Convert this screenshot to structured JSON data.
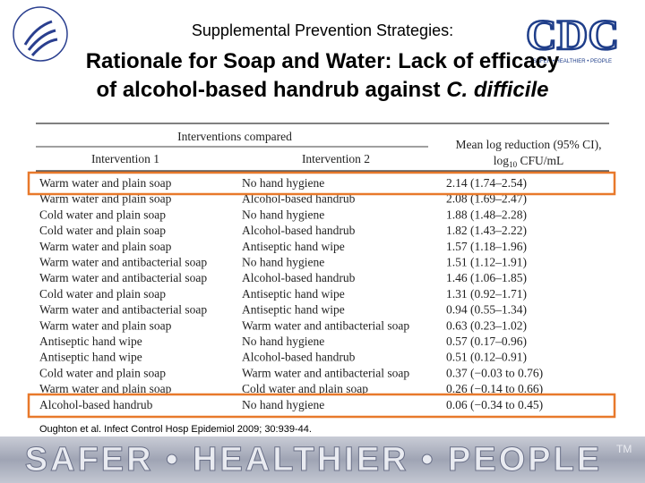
{
  "header": {
    "subtitle": "Supplemental Prevention Strategies:",
    "title_line1": "Rationale for Soap and Water: Lack of efficacy",
    "title_line2": "of alcohol-based handrub against ",
    "title_italic": "C. difficile",
    "logo": "CDC",
    "logo_tagline": "SAFER • HEALTHIER • PEOPLE"
  },
  "table": {
    "group_header": "Interventions compared",
    "col1": "Intervention 1",
    "col2": "Intervention 2",
    "col3_line1": "Mean log reduction (95% CI),",
    "col3_log": "log",
    "col3_sub": "10",
    "col3_unit": " CFU/mL",
    "rows": [
      [
        "Warm water and plain soap",
        "No hand hygiene",
        "2.14 (1.74–2.54)"
      ],
      [
        "Warm water and plain soap",
        "Alcohol-based handrub",
        "2.08 (1.69–2.47)"
      ],
      [
        "Cold water and plain soap",
        "No hand hygiene",
        "1.88 (1.48–2.28)"
      ],
      [
        "Cold water and plain soap",
        "Alcohol-based handrub",
        "1.82 (1.43–2.22)"
      ],
      [
        "Warm water and plain soap",
        "Antiseptic hand wipe",
        "1.57 (1.18–1.96)"
      ],
      [
        "Warm water and antibacterial soap",
        "No hand hygiene",
        "1.51 (1.12–1.91)"
      ],
      [
        "Warm water and antibacterial soap",
        "Alcohol-based handrub",
        "1.46 (1.06–1.85)"
      ],
      [
        "Cold water and plain soap",
        "Antiseptic hand wipe",
        "1.31 (0.92–1.71)"
      ],
      [
        "Warm water and antibacterial soap",
        "Antiseptic hand wipe",
        "0.94 (0.55–1.34)"
      ],
      [
        "Warm water and plain soap",
        "Warm water and antibacterial soap",
        "0.63 (0.23–1.02)"
      ],
      [
        "Antiseptic hand wipe",
        "No hand hygiene",
        "0.57 (0.17–0.96)"
      ],
      [
        "Antiseptic hand wipe",
        "Alcohol-based handrub",
        "0.51 (0.12–0.91)"
      ],
      [
        "Cold water and plain soap",
        "Warm water and antibacterial soap",
        "0.37 (−0.03 to 0.76)"
      ],
      [
        "Warm water and plain soap",
        "Cold water and plain soap",
        "0.26 (−0.14 to 0.66)"
      ],
      [
        "Alcohol-based handrub",
        "No hand hygiene",
        "0.06 (−0.34 to 0.45)"
      ]
    ]
  },
  "citation": "Oughton et al. Infect Control Hosp Epidemiol 2009; 30:939-44.",
  "footer": {
    "slogan": "SAFER • HEALTHIER • PEOPLE",
    "tm": "TM"
  }
}
